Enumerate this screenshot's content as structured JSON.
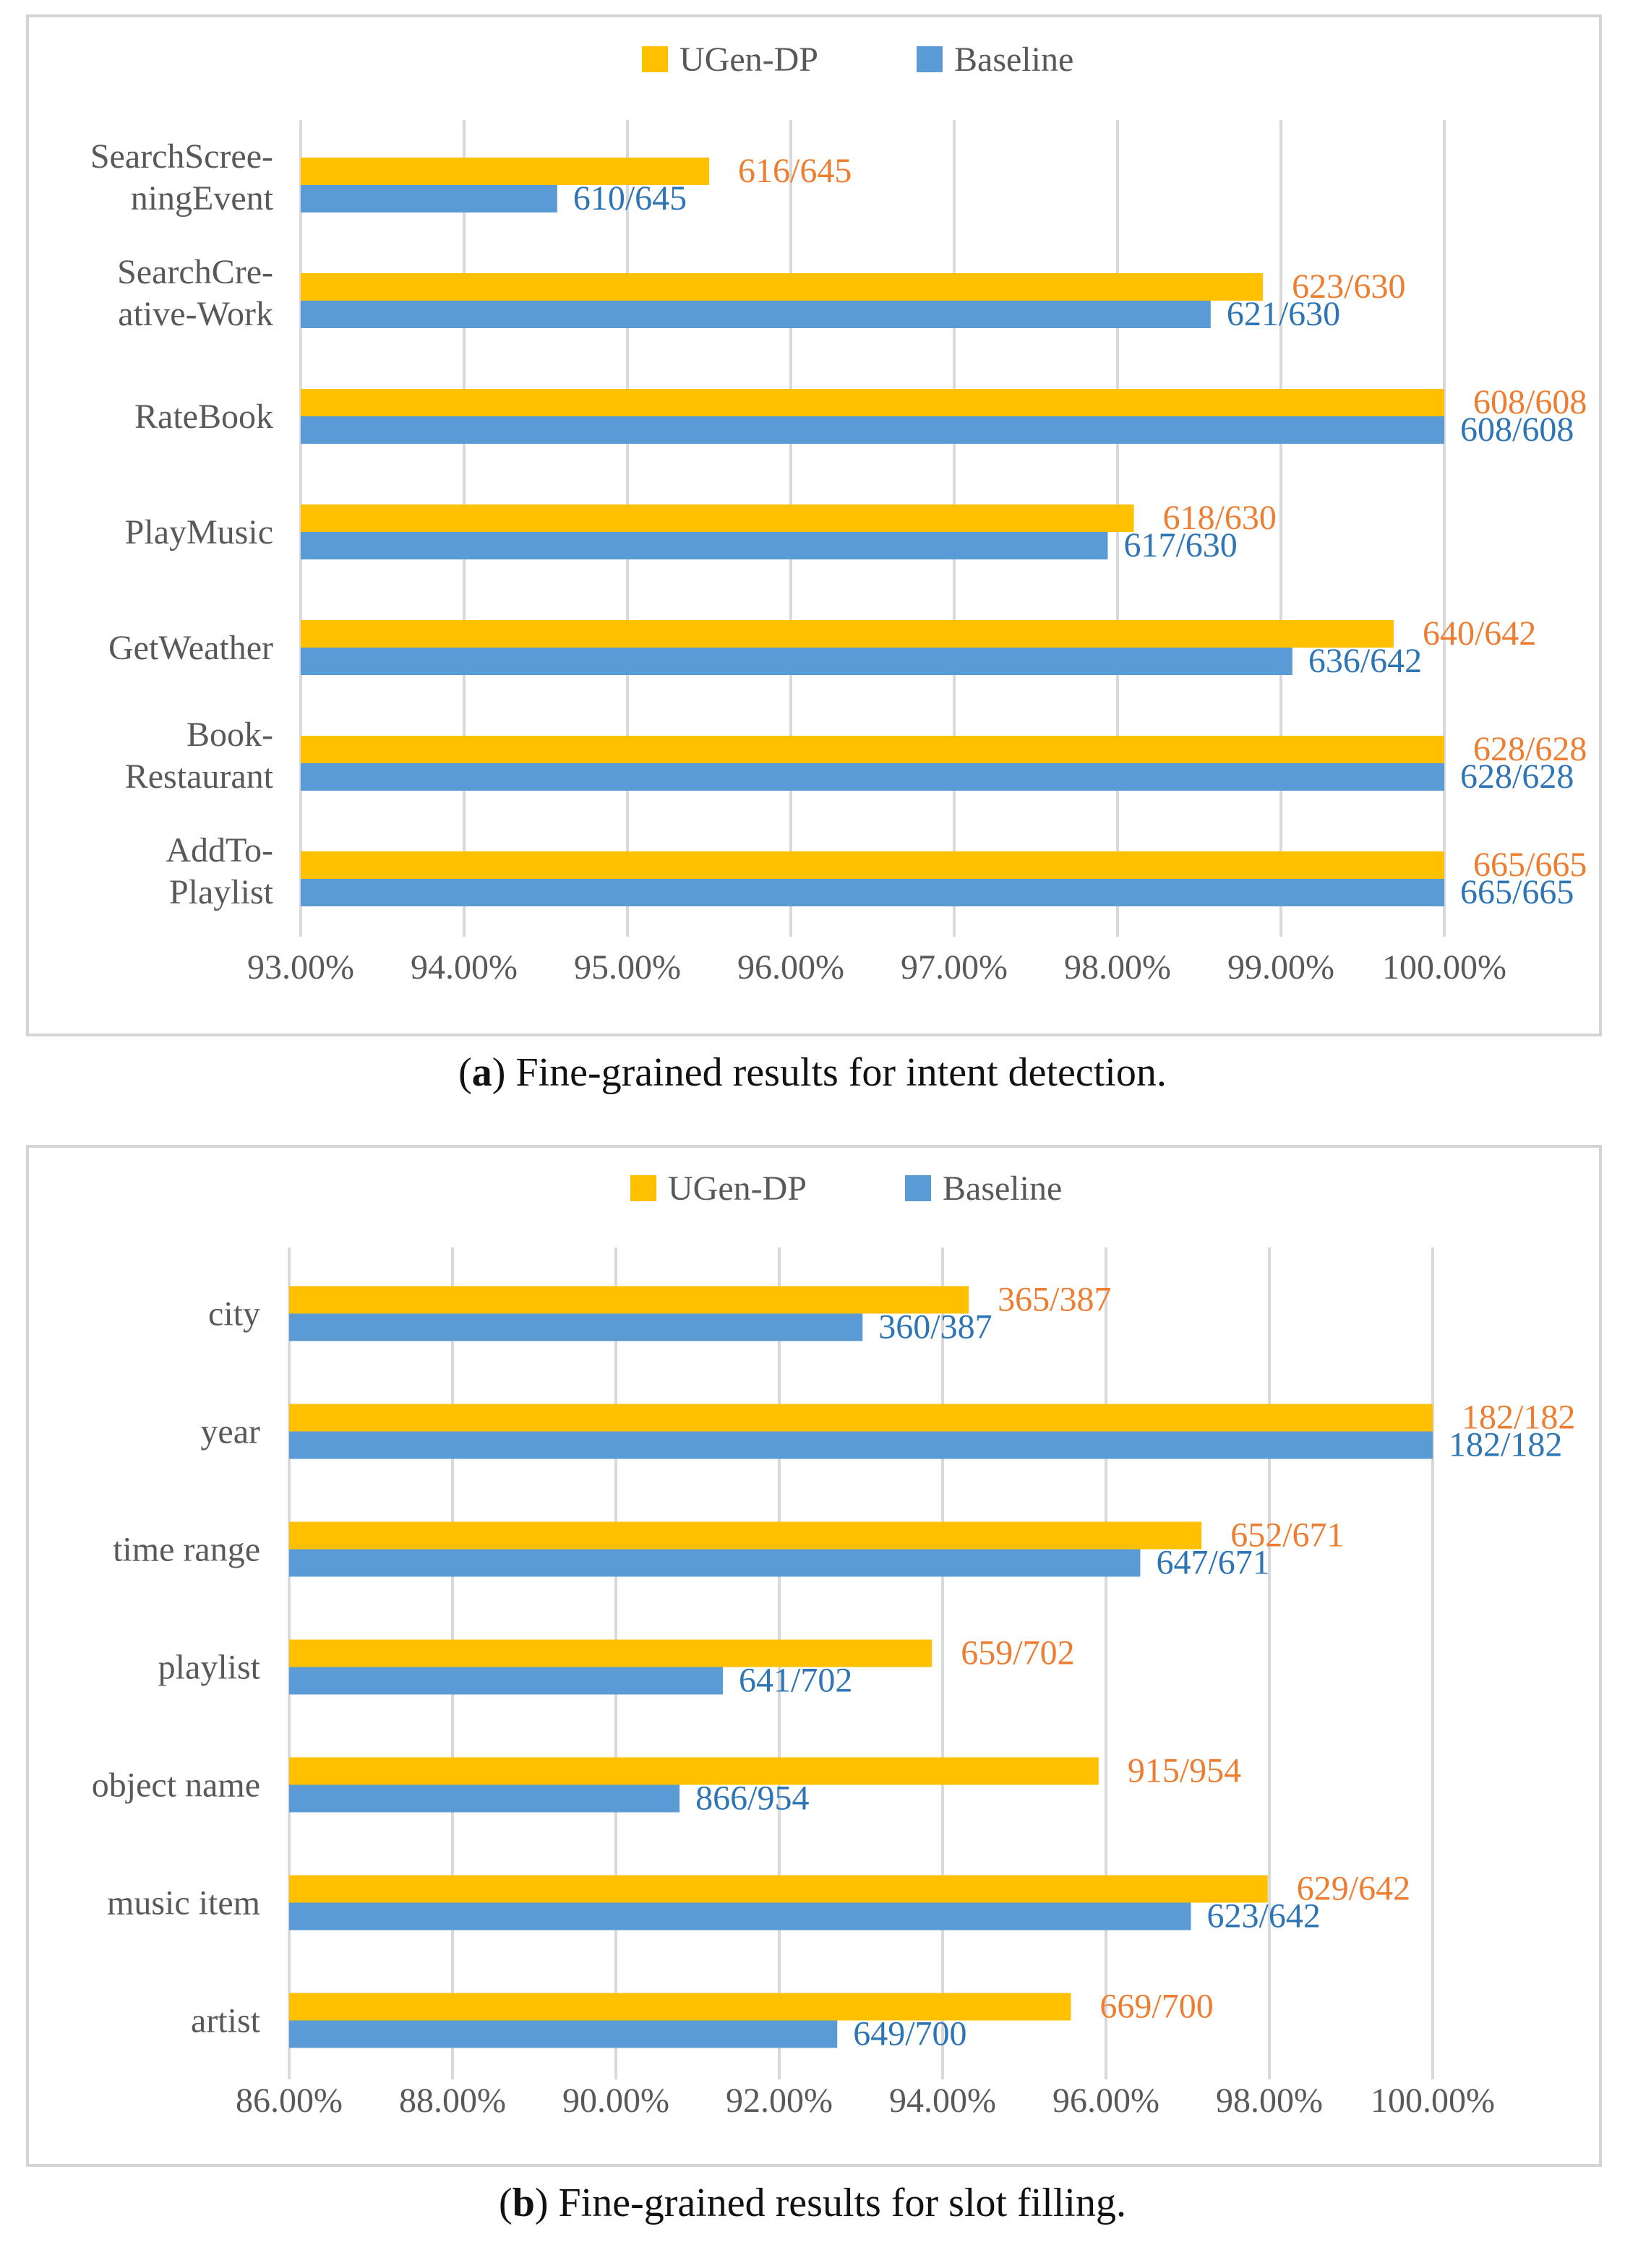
{
  "colors": {
    "ugen": "#FFC000",
    "baseline": "#5B9BD5",
    "ugen_text": "#ED7D31",
    "baseline_text": "#2E75B6",
    "grid": "#D9D9D9",
    "axis_text": "#595959"
  },
  "captions": {
    "a": {
      "label": "(a)",
      "label_letter": "a",
      "text": "Fine-grained results for intent detection."
    },
    "b": {
      "label": "(b)",
      "label_letter": "b",
      "text": "Fine-grained results for slot filling."
    }
  },
  "chart_data": [
    {
      "type": "bar",
      "orientation": "horizontal",
      "title": "",
      "legend": [
        "UGen-DP",
        "Baseline"
      ],
      "legend_position": "top",
      "categories": [
        [
          "SearchScree-",
          "ningEvent"
        ],
        [
          "SearchCre-",
          "ative-Work"
        ],
        [
          "RateBook"
        ],
        [
          "PlayMusic"
        ],
        [
          "GetWeather"
        ],
        [
          "Book-",
          "Restaurant"
        ],
        [
          "AddTo-",
          "Playlist"
        ]
      ],
      "xlim": [
        93,
        100
      ],
      "xticks": [
        "93.00%",
        "94.00%",
        "95.00%",
        "96.00%",
        "97.00%",
        "98.00%",
        "99.00%",
        "100.00%"
      ],
      "series": [
        {
          "name": "UGen-DP",
          "values": [
            95.5,
            98.89,
            100.0,
            98.1,
            99.69,
            100.0,
            100.0
          ],
          "labels": [
            "616/645",
            "623/630",
            "608/608",
            "618/630",
            "640/642",
            "628/628",
            "665/665"
          ]
        },
        {
          "name": "Baseline",
          "values": [
            94.57,
            98.57,
            100.0,
            97.94,
            99.07,
            100.0,
            100.0
          ],
          "labels": [
            "610/645",
            "621/630",
            "608/608",
            "617/630",
            "636/642",
            "628/628",
            "665/665"
          ]
        }
      ]
    },
    {
      "type": "bar",
      "orientation": "horizontal",
      "title": "",
      "legend": [
        "UGen-DP",
        "Baseline"
      ],
      "legend_position": "top",
      "categories": [
        [
          "city"
        ],
        [
          "year"
        ],
        [
          "time range"
        ],
        [
          "playlist"
        ],
        [
          "object name"
        ],
        [
          "music item"
        ],
        [
          "artist"
        ]
      ],
      "xlim": [
        86,
        100
      ],
      "xticks": [
        "86.00%",
        "88.00%",
        "90.00%",
        "92.00%",
        "94.00%",
        "96.00%",
        "98.00%",
        "100.00%"
      ],
      "series": [
        {
          "name": "UGen-DP",
          "values": [
            94.32,
            100.0,
            97.17,
            93.87,
            95.91,
            97.98,
            95.57
          ],
          "labels": [
            "365/387",
            "182/182",
            "652/671",
            "659/702",
            "915/954",
            "629/642",
            "669/700"
          ]
        },
        {
          "name": "Baseline",
          "values": [
            93.02,
            100.0,
            96.42,
            91.31,
            90.78,
            97.04,
            92.71
          ],
          "labels": [
            "360/387",
            "182/182",
            "647/671",
            "641/702",
            "866/954",
            "623/642",
            "649/700"
          ]
        }
      ]
    }
  ]
}
